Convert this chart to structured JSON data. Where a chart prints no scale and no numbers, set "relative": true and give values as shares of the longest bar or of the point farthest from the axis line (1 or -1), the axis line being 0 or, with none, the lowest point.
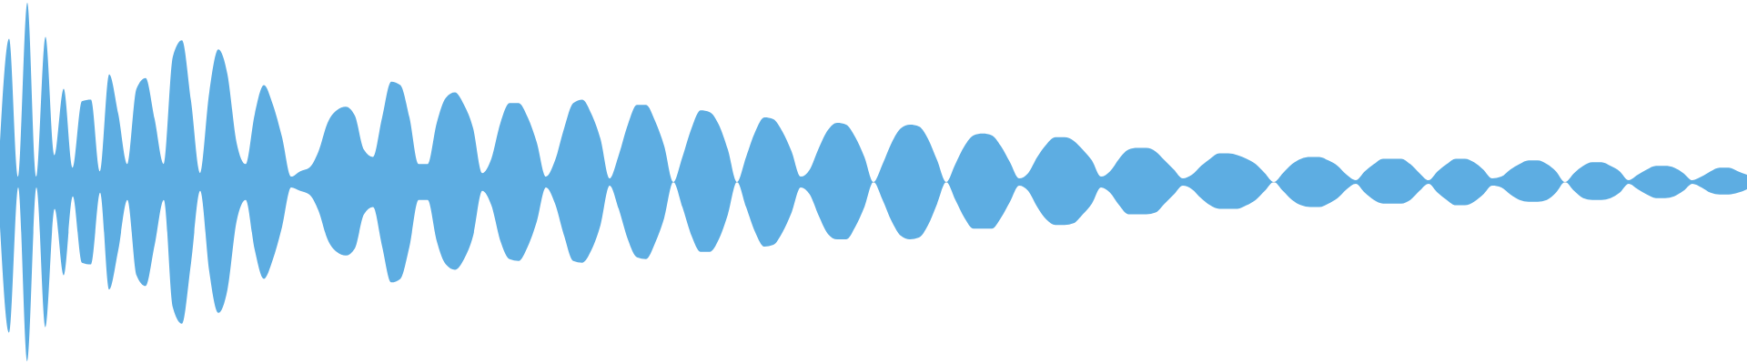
{
  "chart_data": {
    "type": "area",
    "relative": true,
    "categories": [
      null,
      null,
      null,
      null,
      null,
      null,
      null,
      null,
      null,
      null,
      null,
      null,
      null,
      null,
      null,
      null,
      null,
      null,
      null,
      null,
      null,
      null,
      null,
      null,
      null,
      null,
      null,
      null,
      null,
      null,
      null,
      null,
      null,
      null,
      null,
      null,
      null,
      null,
      null,
      null,
      null,
      null,
      null,
      null,
      null,
      null,
      null,
      null,
      null,
      null,
      null,
      null,
      null,
      null,
      null,
      null,
      null,
      null,
      null,
      null,
      null,
      null,
      null,
      null,
      null,
      null,
      null,
      null,
      null,
      null,
      null,
      null,
      null,
      null,
      null,
      null,
      null,
      null,
      null,
      null,
      null,
      null,
      null,
      null,
      null,
      null,
      null,
      null,
      null,
      null,
      null,
      null,
      null,
      null,
      null,
      null,
      null,
      null,
      null,
      null,
      null,
      null,
      null,
      null,
      null,
      null,
      null,
      null,
      null,
      null,
      null,
      null,
      null,
      null,
      null,
      null,
      null,
      null,
      null,
      null,
      null,
      null,
      null,
      null,
      null,
      null,
      null,
      null,
      null,
      null,
      null,
      null,
      null,
      null,
      null,
      null,
      null,
      null,
      null,
      null,
      null,
      null,
      null,
      null,
      null,
      null,
      null,
      null,
      null,
      null,
      null,
      null,
      null,
      null,
      null,
      null,
      null,
      null,
      null,
      null,
      null,
      null,
      null,
      null,
      null,
      null,
      null,
      null,
      null,
      null,
      null,
      null,
      null,
      null,
      null,
      null,
      null,
      null,
      null,
      null,
      null,
      null,
      null,
      null,
      null,
      null,
      null,
      null,
      null,
      null,
      null,
      null,
      null
    ],
    "series": [
      {
        "color": "#5dade2",
        "values": [
          0.2,
          0.8,
          0.03,
          1.0,
          0.03,
          0.81,
          0.15,
          0.52,
          0.08,
          0.45,
          0.46,
          0.06,
          0.6,
          0.38,
          0.1,
          0.52,
          0.58,
          0.35,
          0.1,
          0.7,
          0.79,
          0.45,
          0.05,
          0.5,
          0.74,
          0.6,
          0.22,
          0.1,
          0.38,
          0.54,
          0.43,
          0.25,
          0.03,
          0.06,
          0.08,
          0.17,
          0.33,
          0.4,
          0.42,
          0.37,
          0.18,
          0.14,
          0.36,
          0.56,
          0.54,
          0.36,
          0.1,
          0.1,
          0.33,
          0.47,
          0.5,
          0.43,
          0.3,
          0.05,
          0.13,
          0.33,
          0.44,
          0.44,
          0.36,
          0.22,
          0.03,
          0.12,
          0.3,
          0.44,
          0.46,
          0.38,
          0.24,
          0.02,
          0.15,
          0.32,
          0.43,
          0.43,
          0.34,
          0.2,
          0.0,
          0.14,
          0.3,
          0.4,
          0.39,
          0.32,
          0.18,
          0.0,
          0.14,
          0.28,
          0.36,
          0.35,
          0.28,
          0.17,
          0.03,
          0.07,
          0.19,
          0.29,
          0.33,
          0.32,
          0.25,
          0.14,
          0.0,
          0.1,
          0.22,
          0.3,
          0.32,
          0.31,
          0.24,
          0.12,
          0.0,
          0.1,
          0.2,
          0.26,
          0.27,
          0.26,
          0.2,
          0.11,
          0.02,
          0.05,
          0.14,
          0.21,
          0.25,
          0.25,
          0.23,
          0.18,
          0.12,
          0.03,
          0.06,
          0.13,
          0.18,
          0.19,
          0.19,
          0.17,
          0.12,
          0.07,
          0.02,
          0.04,
          0.09,
          0.13,
          0.16,
          0.16,
          0.15,
          0.13,
          0.1,
          0.05,
          0.0,
          0.05,
          0.1,
          0.13,
          0.14,
          0.14,
          0.12,
          0.09,
          0.04,
          0.01,
          0.06,
          0.1,
          0.13,
          0.13,
          0.13,
          0.1,
          0.05,
          0.01,
          0.06,
          0.1,
          0.13,
          0.13,
          0.11,
          0.07,
          0.02,
          0.03,
          0.07,
          0.1,
          0.12,
          0.12,
          0.1,
          0.06,
          0.0,
          0.05,
          0.09,
          0.11,
          0.11,
          0.09,
          0.06,
          0.01,
          0.04,
          0.07,
          0.09,
          0.09,
          0.08,
          0.05,
          0.01,
          0.03,
          0.06,
          0.08,
          0.08,
          0.06,
          0.04
        ]
      },
      {
        "color": "#5dade2",
        "values": [
          -0.25,
          -0.84,
          -0.03,
          -1.0,
          -0.03,
          -0.81,
          -0.15,
          -0.52,
          -0.08,
          -0.45,
          -0.46,
          -0.06,
          -0.6,
          -0.38,
          -0.1,
          -0.52,
          -0.58,
          -0.35,
          -0.1,
          -0.7,
          -0.79,
          -0.45,
          -0.05,
          -0.5,
          -0.73,
          -0.6,
          -0.22,
          -0.1,
          -0.38,
          -0.54,
          -0.43,
          -0.25,
          -0.03,
          -0.05,
          -0.07,
          -0.16,
          -0.32,
          -0.39,
          -0.41,
          -0.37,
          -0.18,
          -0.14,
          -0.36,
          -0.56,
          -0.54,
          -0.36,
          -0.1,
          -0.1,
          -0.33,
          -0.46,
          -0.49,
          -0.43,
          -0.3,
          -0.05,
          -0.13,
          -0.33,
          -0.43,
          -0.44,
          -0.36,
          -0.22,
          -0.03,
          -0.12,
          -0.3,
          -0.44,
          -0.45,
          -0.38,
          -0.24,
          -0.02,
          -0.15,
          -0.32,
          -0.42,
          -0.43,
          -0.34,
          -0.2,
          0.0,
          -0.14,
          -0.3,
          -0.39,
          -0.39,
          -0.32,
          -0.18,
          0.0,
          -0.14,
          -0.28,
          -0.36,
          -0.35,
          -0.28,
          -0.17,
          -0.03,
          -0.07,
          -0.19,
          -0.29,
          -0.32,
          -0.32,
          -0.25,
          -0.14,
          0.0,
          -0.1,
          -0.22,
          -0.3,
          -0.32,
          -0.31,
          -0.24,
          -0.12,
          0.0,
          -0.1,
          -0.2,
          -0.26,
          -0.26,
          -0.26,
          -0.2,
          -0.11,
          -0.02,
          -0.05,
          -0.14,
          -0.21,
          -0.24,
          -0.24,
          -0.23,
          -0.18,
          -0.12,
          -0.03,
          -0.06,
          -0.13,
          -0.18,
          -0.18,
          -0.18,
          -0.17,
          -0.12,
          -0.07,
          -0.02,
          -0.04,
          -0.09,
          -0.13,
          -0.15,
          -0.15,
          -0.15,
          -0.13,
          -0.1,
          -0.05,
          0.0,
          -0.05,
          -0.1,
          -0.13,
          -0.14,
          -0.14,
          -0.12,
          -0.09,
          -0.04,
          -0.01,
          -0.06,
          -0.1,
          -0.12,
          -0.12,
          -0.12,
          -0.1,
          -0.05,
          -0.01,
          -0.06,
          -0.1,
          -0.13,
          -0.13,
          -0.11,
          -0.07,
          -0.02,
          -0.03,
          -0.07,
          -0.1,
          -0.11,
          -0.11,
          -0.1,
          -0.06,
          0.0,
          -0.05,
          -0.09,
          -0.1,
          -0.1,
          -0.09,
          -0.06,
          -0.01,
          -0.04,
          -0.07,
          -0.09,
          -0.09,
          -0.08,
          -0.05,
          -0.01,
          -0.03,
          -0.06,
          -0.07,
          -0.07,
          -0.06,
          -0.04
        ]
      }
    ]
  }
}
